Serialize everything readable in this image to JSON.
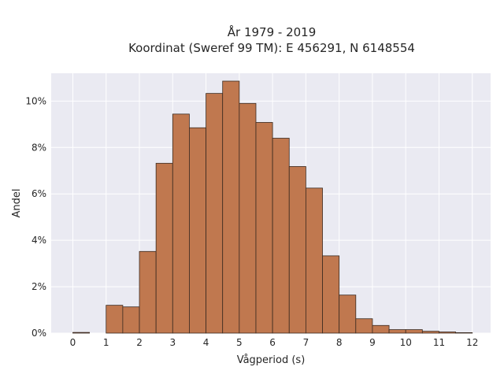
{
  "chart_data": {
    "type": "bar",
    "title": "År 1979 - 2019",
    "subtitle": "Koordinat (Sweref 99 TM): E 456291, N 6148554",
    "xlabel": "Vågperiod (s)",
    "ylabel": "Andel",
    "x_ticks": [
      "0",
      "1",
      "2",
      "3",
      "4",
      "5",
      "6",
      "7",
      "8",
      "9",
      "10",
      "11",
      "12"
    ],
    "y_ticks": [
      "0%",
      "2%",
      "4%",
      "6%",
      "8%",
      "10%"
    ],
    "xlim": [
      -0.65,
      12.55
    ],
    "ylim": [
      0,
      11.2
    ],
    "grid": true,
    "bin_width": 0.5,
    "bins": [
      {
        "x0": 0.0,
        "value": 0.03
      },
      {
        "x0": 0.5,
        "value": 0.0
      },
      {
        "x0": 1.0,
        "value": 1.2
      },
      {
        "x0": 1.5,
        "value": 1.13
      },
      {
        "x0": 2.0,
        "value": 3.52
      },
      {
        "x0": 2.5,
        "value": 7.32
      },
      {
        "x0": 3.0,
        "value": 9.44
      },
      {
        "x0": 3.5,
        "value": 8.85
      },
      {
        "x0": 4.0,
        "value": 10.33
      },
      {
        "x0": 4.5,
        "value": 10.86
      },
      {
        "x0": 5.0,
        "value": 9.9
      },
      {
        "x0": 5.5,
        "value": 9.08
      },
      {
        "x0": 6.0,
        "value": 8.4
      },
      {
        "x0": 6.5,
        "value": 7.18
      },
      {
        "x0": 7.0,
        "value": 6.25
      },
      {
        "x0": 7.5,
        "value": 3.33
      },
      {
        "x0": 8.0,
        "value": 1.64
      },
      {
        "x0": 8.5,
        "value": 0.62
      },
      {
        "x0": 9.0,
        "value": 0.33
      },
      {
        "x0": 9.5,
        "value": 0.15
      },
      {
        "x0": 10.0,
        "value": 0.15
      },
      {
        "x0": 10.5,
        "value": 0.08
      },
      {
        "x0": 11.0,
        "value": 0.05
      },
      {
        "x0": 11.5,
        "value": 0.02
      }
    ],
    "colors": {
      "bar_fill": "#c0784f",
      "bar_edge": "#3a2a20",
      "plot_background": "#eaeaf2",
      "grid": "#ffffff",
      "text": "#262626"
    }
  }
}
